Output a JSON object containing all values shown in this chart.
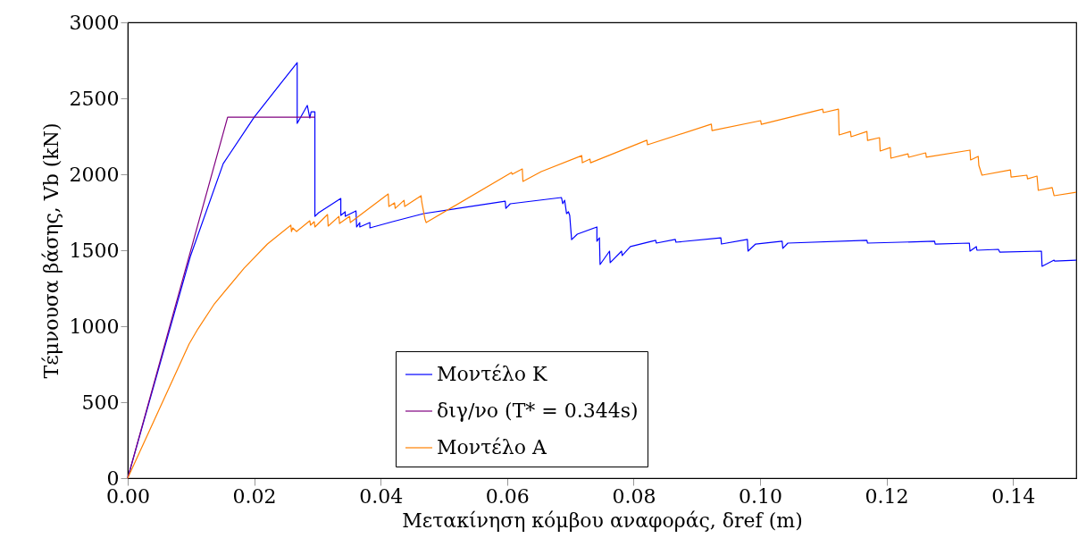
{
  "chart_data": {
    "type": "line",
    "xlabel": "Μετακίνηση κόμβου αναφοράς, δref (m)",
    "ylabel": "Τέμνουσα βάσης, Vb (kN)",
    "xlim": [
      0,
      0.15
    ],
    "ylim": [
      0,
      3000
    ],
    "xticks": [
      {
        "value": 0,
        "label": "0.00"
      },
      {
        "value": 0.02,
        "label": "0.02"
      },
      {
        "value": 0.04,
        "label": "0.04"
      },
      {
        "value": 0.06,
        "label": "0.06"
      },
      {
        "value": 0.08,
        "label": "0.08"
      },
      {
        "value": 0.1,
        "label": "0.10"
      },
      {
        "value": 0.12,
        "label": "0.12"
      },
      {
        "value": 0.14,
        "label": "0.14"
      }
    ],
    "yticks": [
      0,
      500,
      1000,
      1500,
      2000,
      2500,
      3000
    ],
    "grid": false,
    "legend": "bottom",
    "marker": "none",
    "line_style": "solid",
    "series": [
      {
        "name": "Μοντέλο K",
        "color": "#0000ff",
        "x": [
          0,
          0.0099,
          0.0151,
          0.02,
          0.024,
          0.0268,
          0.0268,
          0.0284,
          0.0288,
          0.029,
          0.0296,
          0.0296,
          0.0302,
          0.0337,
          0.0337,
          0.0344,
          0.0344,
          0.0361,
          0.0362,
          0.0367,
          0.0367,
          0.0383,
          0.0383,
          0.0419,
          0.0468,
          0.0597,
          0.0598,
          0.0605,
          0.0686,
          0.0688,
          0.0691,
          0.0694,
          0.0697,
          0.0699,
          0.0702,
          0.0711,
          0.0742,
          0.0742,
          0.0746,
          0.0747,
          0.0762,
          0.0763,
          0.0781,
          0.0782,
          0.0795,
          0.0835,
          0.0836,
          0.0866,
          0.0867,
          0.0938,
          0.0939,
          0.098,
          0.0981,
          0.0993,
          0.1035,
          0.1036,
          0.1044,
          0.1169,
          0.117,
          0.1276,
          0.1277,
          0.1331,
          0.1332,
          0.1342,
          0.1343,
          0.1377,
          0.1379,
          0.1445,
          0.1446,
          0.1465,
          0.1466,
          0.15
        ],
        "values": [
          0,
          1459,
          2070,
          2376,
          2588,
          2735,
          2335,
          2453,
          2370,
          2411,
          2411,
          1723,
          1747,
          1841,
          1729,
          1753,
          1723,
          1759,
          1653,
          1682,
          1653,
          1682,
          1647,
          1688,
          1741,
          1823,
          1776,
          1806,
          1847,
          1806,
          1829,
          1741,
          1753,
          1729,
          1570,
          1606,
          1653,
          1559,
          1582,
          1406,
          1494,
          1418,
          1494,
          1465,
          1524,
          1565,
          1547,
          1571,
          1553,
          1582,
          1541,
          1571,
          1494,
          1541,
          1559,
          1512,
          1547,
          1565,
          1547,
          1559,
          1541,
          1547,
          1494,
          1524,
          1500,
          1506,
          1488,
          1494,
          1394,
          1435,
          1429,
          1435
        ]
      },
      {
        "name": "διγ/νο (T* = 0.344s)",
        "color": "#800080",
        "x": [
          0,
          0.0158,
          0.0296
        ],
        "values": [
          0,
          2376,
          2376
        ]
      },
      {
        "name": "Μοντέλο A",
        "color": "#ff8000",
        "x": [
          0,
          0.0097,
          0.0111,
          0.0137,
          0.0184,
          0.0221,
          0.0258,
          0.0259,
          0.0261,
          0.0267,
          0.0288,
          0.0289,
          0.0295,
          0.0296,
          0.0316,
          0.0317,
          0.0334,
          0.0335,
          0.0351,
          0.0352,
          0.0412,
          0.0413,
          0.0422,
          0.0423,
          0.0437,
          0.0438,
          0.0464,
          0.0465,
          0.047,
          0.0472,
          0.0607,
          0.0608,
          0.0624,
          0.0625,
          0.0654,
          0.0718,
          0.0719,
          0.0731,
          0.0732,
          0.0821,
          0.0822,
          0.0923,
          0.0924,
          0.1001,
          0.1002,
          0.1099,
          0.11,
          0.1124,
          0.1125,
          0.1143,
          0.1144,
          0.1169,
          0.117,
          0.1189,
          0.119,
          0.1206,
          0.1207,
          0.1234,
          0.1235,
          0.1262,
          0.1263,
          0.1332,
          0.1333,
          0.1345,
          0.1346,
          0.1351,
          0.1396,
          0.1397,
          0.1422,
          0.1423,
          0.1438,
          0.144,
          0.1462,
          0.1465,
          0.15
        ],
        "values": [
          0,
          882,
          982,
          1147,
          1382,
          1541,
          1665,
          1623,
          1647,
          1623,
          1694,
          1665,
          1688,
          1653,
          1735,
          1659,
          1723,
          1676,
          1723,
          1682,
          1870,
          1788,
          1812,
          1776,
          1829,
          1788,
          1859,
          1818,
          1706,
          1682,
          2012,
          2000,
          2035,
          1953,
          2018,
          2123,
          2076,
          2100,
          2076,
          2224,
          2194,
          2330,
          2288,
          2353,
          2329,
          2429,
          2406,
          2429,
          2259,
          2282,
          2247,
          2282,
          2223,
          2241,
          2153,
          2176,
          2106,
          2135,
          2112,
          2141,
          2112,
          2159,
          2094,
          2118,
          2059,
          1994,
          2029,
          1982,
          1994,
          1970,
          1988,
          1894,
          1912,
          1859,
          1882
        ]
      }
    ]
  }
}
